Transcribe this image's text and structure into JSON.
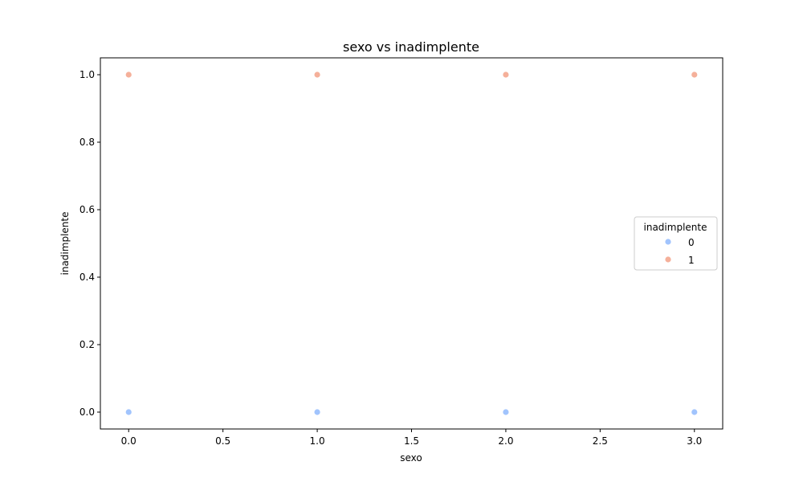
{
  "chart_data": {
    "type": "scatter",
    "title": "sexo vs inadimplente",
    "xlabel": "sexo",
    "ylabel": "inadimplente",
    "xlim": [
      -0.15,
      3.15
    ],
    "ylim": [
      -0.05,
      1.05
    ],
    "xticks": [
      0.0,
      0.5,
      1.0,
      1.5,
      2.0,
      2.5,
      3.0
    ],
    "xtick_labels": [
      "0.0",
      "0.5",
      "1.0",
      "1.5",
      "2.0",
      "2.5",
      "3.0"
    ],
    "yticks": [
      0.0,
      0.2,
      0.4,
      0.6,
      0.8,
      1.0
    ],
    "ytick_labels": [
      "0.0",
      "0.2",
      "0.4",
      "0.6",
      "0.8",
      "1.0"
    ],
    "grid": false,
    "legend": {
      "title": "inadimplente",
      "placement": "center-right"
    },
    "series": [
      {
        "name": "0",
        "color": "#a1c4fd",
        "points": [
          {
            "x": 0,
            "y": 0
          },
          {
            "x": 1,
            "y": 0
          },
          {
            "x": 2,
            "y": 0
          },
          {
            "x": 3,
            "y": 0
          }
        ]
      },
      {
        "name": "1",
        "color": "#f5b09a",
        "points": [
          {
            "x": 0,
            "y": 1
          },
          {
            "x": 1,
            "y": 1
          },
          {
            "x": 2,
            "y": 1
          },
          {
            "x": 3,
            "y": 1
          }
        ]
      }
    ]
  }
}
